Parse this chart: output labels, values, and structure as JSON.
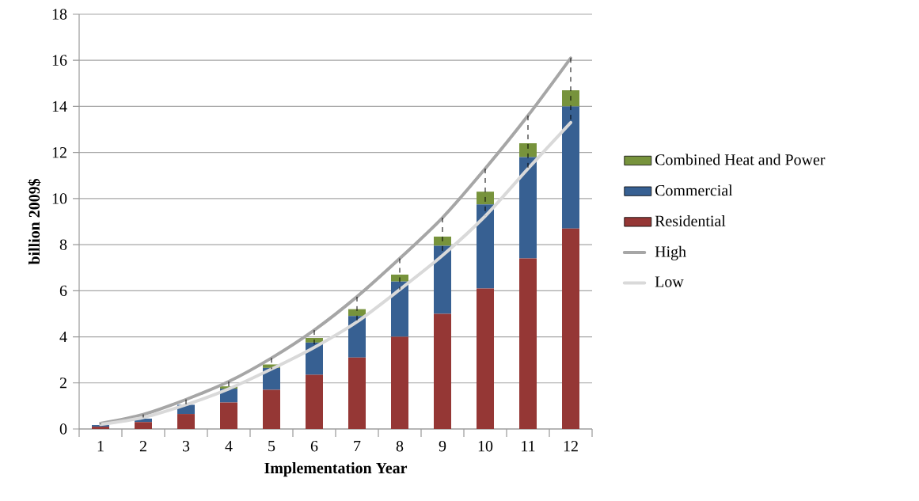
{
  "chart_data": {
    "type": "bar",
    "stacked": true,
    "xlabel": "Implementation Year",
    "ylabel": "billion 2009$",
    "categories": [
      "1",
      "2",
      "3",
      "4",
      "5",
      "6",
      "7",
      "8",
      "9",
      "10",
      "11",
      "12"
    ],
    "ylim": [
      0,
      18
    ],
    "yticks": [
      0,
      2,
      4,
      6,
      8,
      10,
      12,
      14,
      16,
      18
    ],
    "grid": "y",
    "legend": "right",
    "series": [
      {
        "name": "Residential",
        "color": "#953735",
        "values": [
          0.1,
          0.3,
          0.65,
          1.15,
          1.7,
          2.35,
          3.1,
          4.0,
          5.0,
          6.1,
          7.4,
          8.7
        ]
      },
      {
        "name": "Commercial",
        "color": "#376092",
        "values": [
          0.07,
          0.15,
          0.4,
          0.6,
          0.95,
          1.4,
          1.8,
          2.4,
          2.95,
          3.65,
          4.4,
          5.3
        ]
      },
      {
        "name": "Combined Heat and Power",
        "color": "#77933c",
        "values": [
          null,
          null,
          null,
          0.1,
          0.15,
          0.2,
          0.3,
          0.3,
          0.4,
          0.55,
          0.6,
          0.7
        ]
      },
      {
        "name": "High",
        "type": "line",
        "color": "#a6a6a6",
        "values": [
          0.24,
          0.63,
          1.28,
          2.06,
          3.08,
          4.29,
          5.74,
          7.4,
          9.17,
          11.3,
          13.6,
          16.1
        ]
      },
      {
        "name": "Low",
        "type": "line",
        "color": "#d9d9d9",
        "values": [
          0.2,
          0.5,
          1.05,
          1.74,
          2.6,
          3.54,
          4.65,
          6.05,
          7.53,
          9.24,
          11.3,
          13.3
        ]
      }
    ]
  }
}
